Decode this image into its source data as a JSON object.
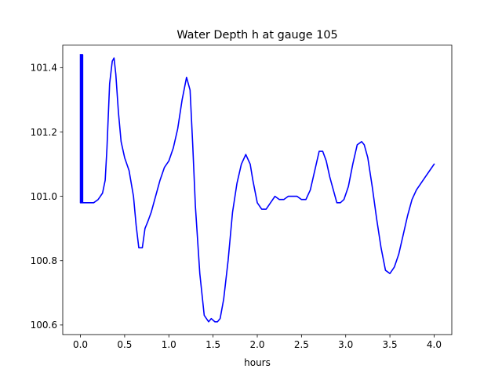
{
  "chart_data": {
    "type": "line",
    "title": "Water Depth h at gauge 105",
    "xlabel": "hours",
    "ylabel": "",
    "xlim": [
      -0.2,
      4.2
    ],
    "ylim": [
      100.57,
      101.47
    ],
    "xticks": [
      0.0,
      0.5,
      1.0,
      1.5,
      2.0,
      2.5,
      3.0,
      3.5,
      4.0
    ],
    "xtick_labels": [
      "0.0",
      "0.5",
      "1.0",
      "1.5",
      "2.0",
      "2.5",
      "3.0",
      "3.5",
      "4.0"
    ],
    "yticks": [
      100.6,
      100.8,
      101.0,
      101.2,
      101.4
    ],
    "ytick_labels": [
      "100.6",
      "100.8",
      "101.0",
      "101.2",
      "101.4"
    ],
    "grid": false,
    "legend": "none",
    "series": [
      {
        "color": "#0000ff",
        "x": [
          0.0,
          0.0,
          0.005,
          0.005,
          0.01,
          0.01,
          0.015,
          0.015,
          0.02,
          0.02,
          0.025,
          0.025,
          0.03,
          0.05,
          0.1,
          0.15,
          0.2,
          0.25,
          0.28,
          0.3,
          0.33,
          0.36,
          0.38,
          0.4,
          0.43,
          0.46,
          0.5,
          0.55,
          0.6,
          0.63,
          0.66,
          0.7,
          0.73,
          0.76,
          0.8,
          0.85,
          0.9,
          0.95,
          1.0,
          1.05,
          1.1,
          1.15,
          1.2,
          1.24,
          1.27,
          1.3,
          1.35,
          1.4,
          1.45,
          1.48,
          1.52,
          1.55,
          1.58,
          1.62,
          1.67,
          1.72,
          1.77,
          1.82,
          1.87,
          1.92,
          1.95,
          2.0,
          2.05,
          2.1,
          2.15,
          2.2,
          2.25,
          2.3,
          2.35,
          2.4,
          2.45,
          2.5,
          2.55,
          2.6,
          2.65,
          2.7,
          2.74,
          2.78,
          2.82,
          2.86,
          2.9,
          2.94,
          2.98,
          3.03,
          3.08,
          3.13,
          3.18,
          3.21,
          3.25,
          3.3,
          3.35,
          3.4,
          3.45,
          3.5,
          3.55,
          3.6,
          3.65,
          3.7,
          3.75,
          3.8,
          3.85,
          3.9,
          3.95,
          4.0
        ],
        "y": [
          101.44,
          100.98,
          101.44,
          100.98,
          101.44,
          100.98,
          101.44,
          100.98,
          101.44,
          100.98,
          101.44,
          100.98,
          100.98,
          100.98,
          100.98,
          100.98,
          100.99,
          101.01,
          101.05,
          101.15,
          101.35,
          101.42,
          101.43,
          101.38,
          101.26,
          101.17,
          101.12,
          101.08,
          101.0,
          100.91,
          100.84,
          100.84,
          100.9,
          100.92,
          100.95,
          101.0,
          101.05,
          101.09,
          101.11,
          101.15,
          101.21,
          101.3,
          101.37,
          101.33,
          101.16,
          100.97,
          100.76,
          100.63,
          100.61,
          100.62,
          100.61,
          100.61,
          100.62,
          100.68,
          100.8,
          100.95,
          101.04,
          101.1,
          101.13,
          101.1,
          101.05,
          100.98,
          100.96,
          100.96,
          100.98,
          101.0,
          100.99,
          100.99,
          101.0,
          101.0,
          101.0,
          100.99,
          100.99,
          101.02,
          101.08,
          101.14,
          101.14,
          101.11,
          101.06,
          101.02,
          100.98,
          100.98,
          100.99,
          101.03,
          101.1,
          101.16,
          101.17,
          101.16,
          101.12,
          101.03,
          100.93,
          100.84,
          100.77,
          100.76,
          100.78,
          100.82,
          100.88,
          100.94,
          100.99,
          101.02,
          101.04,
          101.06,
          101.08,
          101.1
        ]
      }
    ]
  }
}
